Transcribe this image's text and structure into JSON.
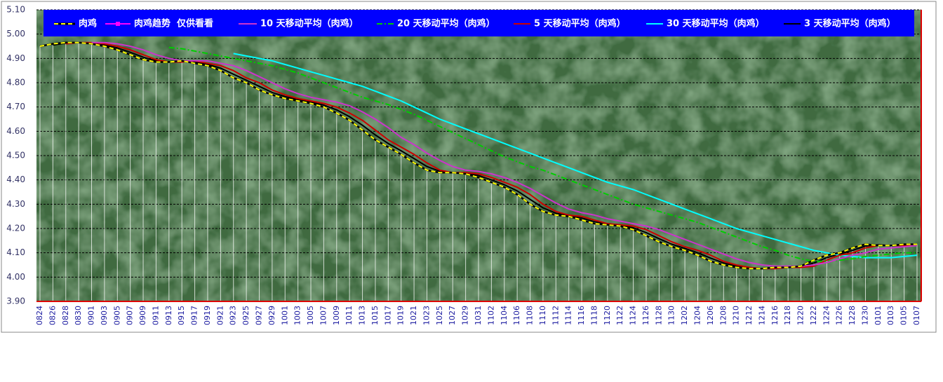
{
  "chart_data": {
    "type": "line",
    "categories": [
      "0824",
      "0826",
      "0828",
      "0830",
      "0901",
      "0903",
      "0905",
      "0907",
      "0909",
      "0911",
      "0913",
      "0915",
      "0917",
      "0919",
      "0921",
      "0923",
      "0925",
      "0927",
      "0929",
      "1001",
      "1003",
      "1005",
      "1007",
      "1009",
      "1011",
      "1013",
      "1015",
      "1017",
      "1019",
      "1021",
      "1023",
      "1025",
      "1027",
      "1029",
      "1031",
      "1102",
      "1104",
      "1106",
      "1108",
      "1110",
      "1112",
      "1114",
      "1116",
      "1118",
      "1120",
      "1122",
      "1124",
      "1126",
      "1128",
      "1130",
      "1202",
      "1204",
      "1206",
      "1208",
      "1210",
      "1212",
      "1214",
      "1216",
      "1218",
      "1220",
      "1222",
      "1224",
      "1226",
      "1228",
      "1230",
      "0101",
      "0103",
      "0105",
      "0107"
    ],
    "series": [
      {
        "name": "肉鸡",
        "color": "#ffff00",
        "edge_color": "#000000",
        "style": "dashed",
        "drop_lines": true,
        "values": [
          4.95,
          4.96,
          4.965,
          4.965,
          4.96,
          4.95,
          4.935,
          4.915,
          4.895,
          4.885,
          4.885,
          4.89,
          4.88,
          4.87,
          4.85,
          4.82,
          4.8,
          4.77,
          4.75,
          4.735,
          4.725,
          4.715,
          4.7,
          4.675,
          4.645,
          4.605,
          4.565,
          4.535,
          4.505,
          4.47,
          4.44,
          4.43,
          4.43,
          4.425,
          4.41,
          4.39,
          4.37,
          4.34,
          4.3,
          4.27,
          4.255,
          4.25,
          4.235,
          4.22,
          4.215,
          4.21,
          4.195,
          4.17,
          4.145,
          4.125,
          4.11,
          4.09,
          4.065,
          4.05,
          4.04,
          4.035,
          4.035,
          4.04,
          4.04,
          4.045,
          4.07,
          4.09,
          4.1,
          4.12,
          4.135,
          4.13,
          4.13,
          4.135,
          4.135
        ]
      },
      {
        "name": "肉鸡趋势  仅供看看",
        "color": "#ff00ff",
        "style": "solid",
        "marker": "square",
        "values": [
          4.95,
          4.96,
          4.965,
          4.965,
          4.96,
          4.95,
          4.935,
          4.915,
          4.895,
          4.885,
          4.885,
          4.89,
          4.88,
          4.87,
          4.85,
          4.82,
          4.8,
          4.77,
          4.75,
          4.735,
          4.725,
          4.715,
          4.7,
          4.675,
          4.645,
          4.605,
          4.565,
          4.535,
          4.505,
          4.47,
          4.44,
          4.43,
          4.43,
          4.425,
          4.41,
          4.39,
          4.37,
          4.34,
          4.3,
          4.27,
          4.255,
          4.25,
          4.235,
          4.22,
          4.215,
          4.21,
          4.195,
          4.17,
          4.145,
          4.125,
          4.11,
          4.09,
          4.065,
          4.05,
          4.04,
          4.035,
          4.035,
          4.04,
          4.04,
          4.045,
          4.07,
          4.09,
          4.1,
          4.12,
          4.135,
          4.13,
          4.13,
          4.135,
          4.135
        ]
      },
      {
        "name": "10 天移动平均（肉鸡）",
        "color": "#cc33cc",
        "style": "solid",
        "values": [
          null,
          null,
          null,
          null,
          4.965,
          4.965,
          4.96,
          4.95,
          4.935,
          4.915,
          4.9,
          4.89,
          4.89,
          4.89,
          4.88,
          4.87,
          4.85,
          4.825,
          4.8,
          4.775,
          4.755,
          4.74,
          4.73,
          4.72,
          4.705,
          4.68,
          4.65,
          4.615,
          4.575,
          4.545,
          4.51,
          4.48,
          4.455,
          4.44,
          4.435,
          4.425,
          4.41,
          4.39,
          4.365,
          4.335,
          4.305,
          4.28,
          4.265,
          4.255,
          4.24,
          4.23,
          4.22,
          4.21,
          4.195,
          4.175,
          4.155,
          4.135,
          4.115,
          4.095,
          4.075,
          4.06,
          4.05,
          4.045,
          4.045,
          4.045,
          4.05,
          4.06,
          4.075,
          4.09,
          4.1,
          4.115,
          4.12,
          4.125,
          4.13
        ]
      },
      {
        "name": "20 天移动平均（肉鸡）",
        "color": "#00cc00",
        "style": "dashdot",
        "values": [
          null,
          null,
          null,
          null,
          null,
          null,
          null,
          null,
          null,
          null,
          4.945,
          4.94,
          4.93,
          4.92,
          4.91,
          4.9,
          4.89,
          4.88,
          4.87,
          4.855,
          4.84,
          4.82,
          4.8,
          4.78,
          4.76,
          4.74,
          4.725,
          4.71,
          4.69,
          4.67,
          4.645,
          4.62,
          4.595,
          4.57,
          4.545,
          4.52,
          4.495,
          4.475,
          4.455,
          4.44,
          4.42,
          4.4,
          4.38,
          4.36,
          4.34,
          4.32,
          4.3,
          4.285,
          4.27,
          4.255,
          4.24,
          4.225,
          4.205,
          4.185,
          4.165,
          4.145,
          4.125,
          4.11,
          4.09,
          4.075,
          4.065,
          4.065,
          4.07,
          4.075,
          4.085,
          4.09,
          4.095,
          4.1,
          4.1
        ]
      },
      {
        "name": "5 天移动平均（肉鸡）",
        "color": "#cc0000",
        "style": "solid",
        "values": [
          null,
          null,
          4.96,
          4.965,
          4.965,
          4.96,
          4.95,
          4.935,
          4.915,
          4.895,
          4.885,
          4.885,
          4.89,
          4.88,
          4.87,
          4.85,
          4.82,
          4.8,
          4.77,
          4.75,
          4.735,
          4.725,
          4.715,
          4.7,
          4.675,
          4.645,
          4.605,
          4.565,
          4.535,
          4.505,
          4.47,
          4.44,
          4.43,
          4.43,
          4.425,
          4.41,
          4.39,
          4.37,
          4.34,
          4.3,
          4.27,
          4.255,
          4.25,
          4.235,
          4.22,
          4.215,
          4.21,
          4.195,
          4.17,
          4.145,
          4.125,
          4.11,
          4.09,
          4.065,
          4.05,
          4.04,
          4.035,
          4.035,
          4.04,
          4.04,
          4.045,
          4.07,
          4.09,
          4.1,
          4.12,
          4.13,
          4.13,
          4.13,
          4.135
        ]
      },
      {
        "name": "30 天移动平均（肉鸡）",
        "color": "#00ffff",
        "style": "solid",
        "values": [
          null,
          null,
          null,
          null,
          null,
          null,
          null,
          null,
          null,
          null,
          null,
          null,
          null,
          null,
          null,
          4.92,
          4.91,
          4.9,
          4.89,
          4.875,
          4.86,
          4.845,
          4.83,
          4.815,
          4.8,
          4.785,
          4.765,
          4.745,
          4.725,
          4.7,
          4.675,
          4.65,
          4.63,
          4.61,
          4.59,
          4.57,
          4.55,
          4.53,
          4.51,
          4.49,
          4.47,
          4.45,
          4.43,
          4.41,
          4.39,
          4.375,
          4.36,
          4.34,
          4.32,
          4.3,
          4.28,
          4.26,
          4.24,
          4.22,
          4.2,
          4.185,
          4.17,
          4.155,
          4.14,
          4.125,
          4.11,
          4.1,
          4.09,
          4.085,
          4.08,
          4.08,
          4.08,
          4.085,
          4.09
        ]
      },
      {
        "name": "3 天移动平均（肉鸡）",
        "color": "#000000",
        "style": "solid",
        "values": [
          null,
          4.955,
          4.963,
          4.965,
          4.963,
          4.955,
          4.943,
          4.925,
          4.905,
          4.89,
          4.885,
          4.888,
          4.885,
          4.875,
          4.86,
          4.835,
          4.81,
          4.785,
          4.76,
          4.743,
          4.73,
          4.72,
          4.708,
          4.688,
          4.66,
          4.625,
          4.585,
          4.55,
          4.52,
          4.488,
          4.455,
          4.435,
          4.43,
          4.428,
          4.418,
          4.4,
          4.38,
          4.355,
          4.32,
          4.285,
          4.263,
          4.253,
          4.243,
          4.228,
          4.218,
          4.213,
          4.203,
          4.183,
          4.158,
          4.135,
          4.118,
          4.1,
          4.078,
          4.058,
          4.045,
          4.038,
          4.035,
          4.038,
          4.04,
          4.043,
          4.058,
          4.08,
          4.095,
          4.11,
          4.128,
          4.133,
          4.13,
          4.133,
          4.135
        ]
      }
    ],
    "ylim": [
      3.9,
      5.1
    ],
    "yticks": [
      {
        "value": 5.1,
        "label": "5.10"
      },
      {
        "value": 5,
        "label": "5.00"
      },
      {
        "value": 4.9,
        "label": "4.90"
      },
      {
        "value": 4.8,
        "label": "4.80"
      },
      {
        "value": 4.7,
        "label": "4.70"
      },
      {
        "value": 4.6,
        "label": "4.60"
      },
      {
        "value": 4.5,
        "label": "4.50"
      },
      {
        "value": 4.4,
        "label": "4.40"
      },
      {
        "value": 4.3,
        "label": "4.30"
      },
      {
        "value": 4.2,
        "label": "4.20"
      },
      {
        "value": 4.1,
        "label": "4.10"
      },
      {
        "value": 4,
        "label": "4.00"
      },
      {
        "value": 3.9,
        "label": "3.90"
      }
    ],
    "grid": true,
    "legend": "top"
  }
}
